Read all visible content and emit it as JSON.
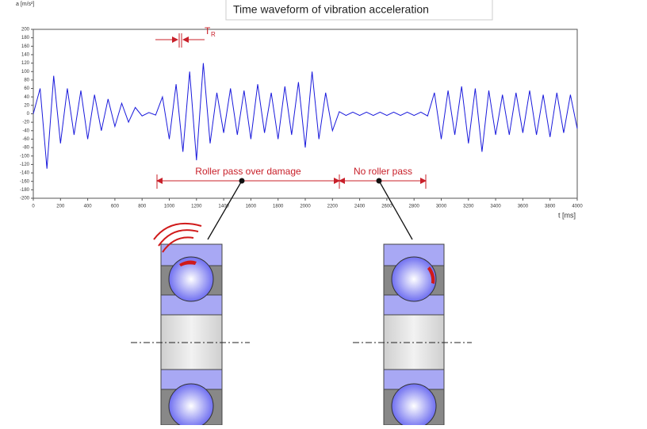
{
  "chart_data": {
    "type": "line",
    "title": "Time waveform of vibration acceleration",
    "y_label": "a [m/s²]",
    "x_label": "t [ms]",
    "x": [
      0,
      50,
      100,
      150,
      200,
      250,
      300,
      350,
      400,
      450,
      500,
      550,
      600,
      650,
      700,
      750,
      800,
      850,
      900,
      950,
      1000,
      1050,
      1100,
      1150,
      1200,
      1250,
      1300,
      1350,
      1400,
      1450,
      1500,
      1550,
      1600,
      1650,
      1700,
      1750,
      1800,
      1850,
      1900,
      1950,
      2000,
      2050,
      2100,
      2150,
      2200,
      2250,
      2300,
      2350,
      2400,
      2450,
      2500,
      2550,
      2600,
      2650,
      2700,
      2750,
      2800,
      2850,
      2900,
      2950,
      3000,
      3050,
      3100,
      3150,
      3200,
      3250,
      3300,
      3350,
      3400,
      3450,
      3500,
      3550,
      3600,
      3650,
      3700,
      3750,
      3800,
      3850,
      3900,
      3950,
      4000
    ],
    "series": [
      {
        "color": "#1a1adc",
        "values": [
          0,
          60,
          -130,
          90,
          -70,
          60,
          -50,
          55,
          -60,
          45,
          -40,
          35,
          -30,
          25,
          -20,
          15,
          -5,
          3,
          -3,
          40,
          -60,
          70,
          -90,
          100,
          -110,
          120,
          -70,
          50,
          -45,
          60,
          -50,
          55,
          -60,
          70,
          -45,
          50,
          -60,
          65,
          -50,
          75,
          -80,
          100,
          -60,
          50,
          -40,
          5,
          -4,
          4,
          -4,
          4,
          -4,
          4,
          -4,
          4,
          -4,
          4,
          -4,
          4,
          -5,
          50,
          -60,
          55,
          -50,
          65,
          -70,
          60,
          -90,
          55,
          -50,
          45,
          -50,
          50,
          -45,
          55,
          -50,
          45,
          -55,
          50,
          -45,
          45,
          -35
        ]
      }
    ],
    "xlim": [
      0,
      4000
    ],
    "ylim": [
      -200,
      200
    ],
    "xticks": [
      0,
      200,
      400,
      600,
      800,
      1000,
      1200,
      1400,
      1600,
      1800,
      2000,
      2200,
      2400,
      2600,
      2800,
      3000,
      3200,
      3400,
      3600,
      3800,
      4000
    ],
    "yticks": [
      -200,
      -180,
      -160,
      -140,
      -120,
      -100,
      -80,
      -60,
      -40,
      -20,
      0,
      20,
      40,
      60,
      80,
      100,
      120,
      140,
      160,
      180,
      200
    ],
    "annotations": {
      "period": "T",
      "period_sub": "R",
      "damage": "Roller pass over damage",
      "no_pass": "No roller pass"
    }
  }
}
